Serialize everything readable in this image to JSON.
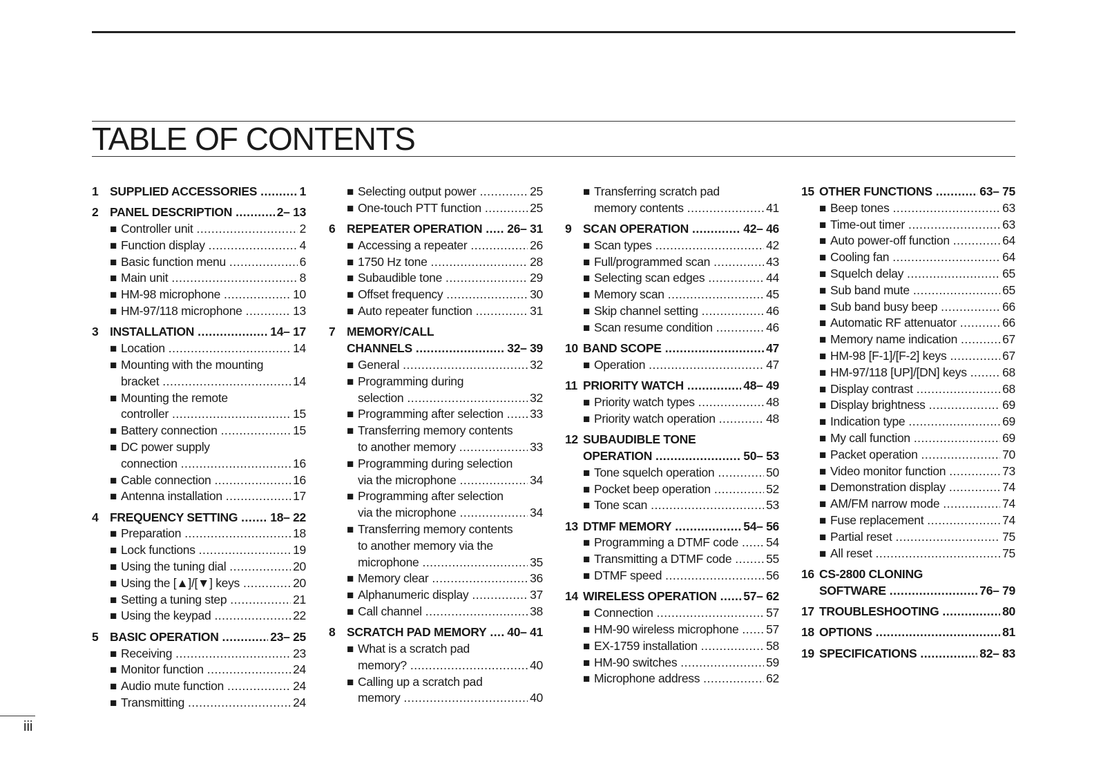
{
  "title": "TABLE OF CONTENTS",
  "page_number": "iii",
  "bullet_icon": "black-square",
  "columns": [
    [
      {
        "type": "section",
        "num": "1",
        "lines": [
          "SUPPLIED ACCESSORIES"
        ],
        "page": "1"
      },
      {
        "type": "section",
        "num": "2",
        "lines": [
          "PANEL DESCRIPTION"
        ],
        "page": "2– 13"
      },
      {
        "type": "item",
        "lines": [
          "Controller unit"
        ],
        "page": "2"
      },
      {
        "type": "item",
        "lines": [
          "Function display"
        ],
        "page": "4"
      },
      {
        "type": "item",
        "lines": [
          "Basic function menu"
        ],
        "page": "6"
      },
      {
        "type": "item",
        "lines": [
          "Main unit"
        ],
        "page": "8"
      },
      {
        "type": "item",
        "lines": [
          "HM-98 microphone"
        ],
        "page": "10"
      },
      {
        "type": "item",
        "lines": [
          "HM-97/118 microphone"
        ],
        "page": "13"
      },
      {
        "type": "section",
        "num": "3",
        "lines": [
          "INSTALLATION"
        ],
        "page": "14– 17"
      },
      {
        "type": "item",
        "lines": [
          "Location"
        ],
        "page": "14"
      },
      {
        "type": "item",
        "lines": [
          "Mounting with the mounting",
          "bracket"
        ],
        "page": "14"
      },
      {
        "type": "item",
        "lines": [
          "Mounting the remote",
          "controller"
        ],
        "page": "15"
      },
      {
        "type": "item",
        "lines": [
          "Battery connection"
        ],
        "page": "15"
      },
      {
        "type": "item",
        "lines": [
          "DC power supply",
          "connection"
        ],
        "page": "16"
      },
      {
        "type": "item",
        "lines": [
          "Cable connection"
        ],
        "page": "16"
      },
      {
        "type": "item",
        "lines": [
          "Antenna installation"
        ],
        "page": "17"
      },
      {
        "type": "section",
        "num": "4",
        "lines": [
          "FREQUENCY SETTING"
        ],
        "page": "18– 22"
      },
      {
        "type": "item",
        "lines": [
          "Preparation"
        ],
        "page": "18"
      },
      {
        "type": "item",
        "lines": [
          "Lock functions"
        ],
        "page": "19"
      },
      {
        "type": "item",
        "lines": [
          "Using the tuning dial"
        ],
        "page": "20"
      },
      {
        "type": "item",
        "lines": [
          "Using the [▲]/[▼] keys"
        ],
        "page": "20"
      },
      {
        "type": "item",
        "lines": [
          "Setting a tuning step"
        ],
        "page": "21"
      },
      {
        "type": "item",
        "lines": [
          "Using the keypad"
        ],
        "page": "22"
      },
      {
        "type": "section",
        "num": "5",
        "lines": [
          "BASIC OPERATION"
        ],
        "page": "23– 25"
      },
      {
        "type": "item",
        "lines": [
          "Receiving"
        ],
        "page": "23"
      },
      {
        "type": "item",
        "lines": [
          "Monitor function"
        ],
        "page": "24"
      },
      {
        "type": "item",
        "lines": [
          "Audio mute function"
        ],
        "page": "24"
      },
      {
        "type": "item",
        "lines": [
          "Transmitting"
        ],
        "page": "24"
      }
    ],
    [
      {
        "type": "item",
        "lines": [
          "Selecting output power"
        ],
        "page": "25"
      },
      {
        "type": "item",
        "lines": [
          "One-touch PTT function"
        ],
        "page": "25"
      },
      {
        "type": "section",
        "num": "6",
        "lines": [
          "REPEATER OPERATION"
        ],
        "page": "26– 31"
      },
      {
        "type": "item",
        "lines": [
          "Accessing a repeater"
        ],
        "page": "26"
      },
      {
        "type": "item",
        "lines": [
          "1750 Hz tone"
        ],
        "page": "28"
      },
      {
        "type": "item",
        "lines": [
          "Subaudible tone"
        ],
        "page": "29"
      },
      {
        "type": "item",
        "lines": [
          "Offset frequency"
        ],
        "page": "30"
      },
      {
        "type": "item",
        "lines": [
          "Auto repeater function"
        ],
        "page": "31"
      },
      {
        "type": "section",
        "num": "7",
        "lines": [
          "MEMORY/CALL",
          "CHANNELS"
        ],
        "page": "32– 39"
      },
      {
        "type": "item",
        "lines": [
          "General"
        ],
        "page": "32"
      },
      {
        "type": "item",
        "lines": [
          "Programming during",
          "selection"
        ],
        "page": "32"
      },
      {
        "type": "item",
        "lines": [
          "Programming after selection"
        ],
        "page": "33"
      },
      {
        "type": "item",
        "lines": [
          "Transferring memory contents",
          "to another memory"
        ],
        "page": "33"
      },
      {
        "type": "item",
        "lines": [
          "Programming during selection",
          "via the microphone"
        ],
        "page": "34"
      },
      {
        "type": "item",
        "lines": [
          "Programming after selection",
          "via the microphone"
        ],
        "page": "34"
      },
      {
        "type": "item",
        "lines": [
          "Transferring memory contents",
          "to another memory via the",
          "microphone"
        ],
        "page": "35"
      },
      {
        "type": "item",
        "lines": [
          "Memory clear"
        ],
        "page": "36"
      },
      {
        "type": "item",
        "lines": [
          "Alphanumeric display"
        ],
        "page": "37"
      },
      {
        "type": "item",
        "lines": [
          "Call channel"
        ],
        "page": "38"
      },
      {
        "type": "section",
        "num": "8",
        "lines": [
          "SCRATCH PAD MEMORY"
        ],
        "page": "40– 41"
      },
      {
        "type": "item",
        "lines": [
          "What is a scratch pad",
          "memory?"
        ],
        "page": "40"
      },
      {
        "type": "item",
        "lines": [
          "Calling up a scratch pad",
          "memory"
        ],
        "page": "40"
      }
    ],
    [
      {
        "type": "item",
        "lines": [
          "Transferring scratch pad",
          "memory contents"
        ],
        "page": "41"
      },
      {
        "type": "section",
        "num": "9",
        "lines": [
          "SCAN OPERATION"
        ],
        "page": "42– 46"
      },
      {
        "type": "item",
        "lines": [
          "Scan types"
        ],
        "page": "42"
      },
      {
        "type": "item",
        "lines": [
          "Full/programmed scan"
        ],
        "page": "43"
      },
      {
        "type": "item",
        "lines": [
          "Selecting scan edges"
        ],
        "page": "44"
      },
      {
        "type": "item",
        "lines": [
          "Memory scan"
        ],
        "page": "45"
      },
      {
        "type": "item",
        "lines": [
          "Skip channel setting"
        ],
        "page": "46"
      },
      {
        "type": "item",
        "lines": [
          "Scan resume condition"
        ],
        "page": "46"
      },
      {
        "type": "section",
        "num": "10",
        "lines": [
          "BAND SCOPE"
        ],
        "page": "47"
      },
      {
        "type": "item",
        "lines": [
          "Operation"
        ],
        "page": "47"
      },
      {
        "type": "section",
        "num": "11",
        "lines": [
          "PRIORITY WATCH"
        ],
        "page": "48– 49"
      },
      {
        "type": "item",
        "lines": [
          "Priority watch types"
        ],
        "page": "48"
      },
      {
        "type": "item",
        "lines": [
          "Priority watch operation"
        ],
        "page": "48"
      },
      {
        "type": "section",
        "num": "12",
        "lines": [
          "SUBAUDIBLE TONE",
          "OPERATION"
        ],
        "page": "50– 53"
      },
      {
        "type": "item",
        "lines": [
          "Tone squelch operation"
        ],
        "page": "50"
      },
      {
        "type": "item",
        "lines": [
          "Pocket beep operation"
        ],
        "page": "52"
      },
      {
        "type": "item",
        "lines": [
          "Tone scan"
        ],
        "page": "53"
      },
      {
        "type": "section",
        "num": "13",
        "lines": [
          "DTMF MEMORY"
        ],
        "page": "54– 56"
      },
      {
        "type": "item",
        "lines": [
          "Programming a DTMF code"
        ],
        "page": "54"
      },
      {
        "type": "item",
        "lines": [
          "Transmitting a DTMF code"
        ],
        "page": "55"
      },
      {
        "type": "item",
        "lines": [
          "DTMF speed"
        ],
        "page": "56"
      },
      {
        "type": "section",
        "num": "14",
        "lines": [
          "WIRELESS OPERATION"
        ],
        "page": "57– 62"
      },
      {
        "type": "item",
        "lines": [
          "Connection"
        ],
        "page": "57"
      },
      {
        "type": "item",
        "lines": [
          "HM-90 wireless microphone"
        ],
        "page": "57"
      },
      {
        "type": "item",
        "lines": [
          "EX-1759 installation"
        ],
        "page": "58"
      },
      {
        "type": "item",
        "lines": [
          "HM-90 switches"
        ],
        "page": "59"
      },
      {
        "type": "item",
        "lines": [
          "Microphone address"
        ],
        "page": "62"
      }
    ],
    [
      {
        "type": "section",
        "num": "15",
        "lines": [
          "OTHER FUNCTIONS"
        ],
        "page": "63– 75"
      },
      {
        "type": "item",
        "lines": [
          "Beep tones"
        ],
        "page": "63"
      },
      {
        "type": "item",
        "lines": [
          "Time-out timer"
        ],
        "page": "63"
      },
      {
        "type": "item",
        "lines": [
          "Auto power-off function"
        ],
        "page": "64"
      },
      {
        "type": "item",
        "lines": [
          "Cooling fan"
        ],
        "page": "64"
      },
      {
        "type": "item",
        "lines": [
          "Squelch delay"
        ],
        "page": "65"
      },
      {
        "type": "item",
        "lines": [
          "Sub band mute"
        ],
        "page": "65"
      },
      {
        "type": "item",
        "lines": [
          "Sub band busy beep"
        ],
        "page": "66"
      },
      {
        "type": "item",
        "lines": [
          "Automatic RF attenuator"
        ],
        "page": "66"
      },
      {
        "type": "item",
        "lines": [
          "Memory name indication"
        ],
        "page": "67"
      },
      {
        "type": "item",
        "lines": [
          "HM-98 [F-1]/[F-2] keys"
        ],
        "page": "67"
      },
      {
        "type": "item",
        "lines": [
          "HM-97/118 [UP]/[DN] keys"
        ],
        "page": "68"
      },
      {
        "type": "item",
        "lines": [
          "Display contrast"
        ],
        "page": "68"
      },
      {
        "type": "item",
        "lines": [
          "Display brightness"
        ],
        "page": "69"
      },
      {
        "type": "item",
        "lines": [
          "Indication type"
        ],
        "page": "69"
      },
      {
        "type": "item",
        "lines": [
          "My call function"
        ],
        "page": "69"
      },
      {
        "type": "item",
        "lines": [
          "Packet operation"
        ],
        "page": "70"
      },
      {
        "type": "item",
        "lines": [
          "Video monitor function"
        ],
        "page": "73"
      },
      {
        "type": "item",
        "lines": [
          "Demonstration display"
        ],
        "page": "74"
      },
      {
        "type": "item",
        "lines": [
          "AM/FM narrow mode"
        ],
        "page": "74"
      },
      {
        "type": "item",
        "lines": [
          "Fuse replacement"
        ],
        "page": "74"
      },
      {
        "type": "item",
        "lines": [
          "Partial reset"
        ],
        "page": "75"
      },
      {
        "type": "item",
        "lines": [
          "All reset"
        ],
        "page": "75"
      },
      {
        "type": "section",
        "num": "16",
        "lines": [
          "CS-2800 CLONING",
          "SOFTWARE"
        ],
        "page": "76– 79"
      },
      {
        "type": "section",
        "num": "17",
        "lines": [
          "TROUBLESHOOTING"
        ],
        "page": "80"
      },
      {
        "type": "section",
        "num": "18",
        "lines": [
          "OPTIONS"
        ],
        "page": "81"
      },
      {
        "type": "section",
        "num": "19",
        "lines": [
          "SPECIFICATIONS"
        ],
        "page": "82– 83"
      }
    ]
  ]
}
